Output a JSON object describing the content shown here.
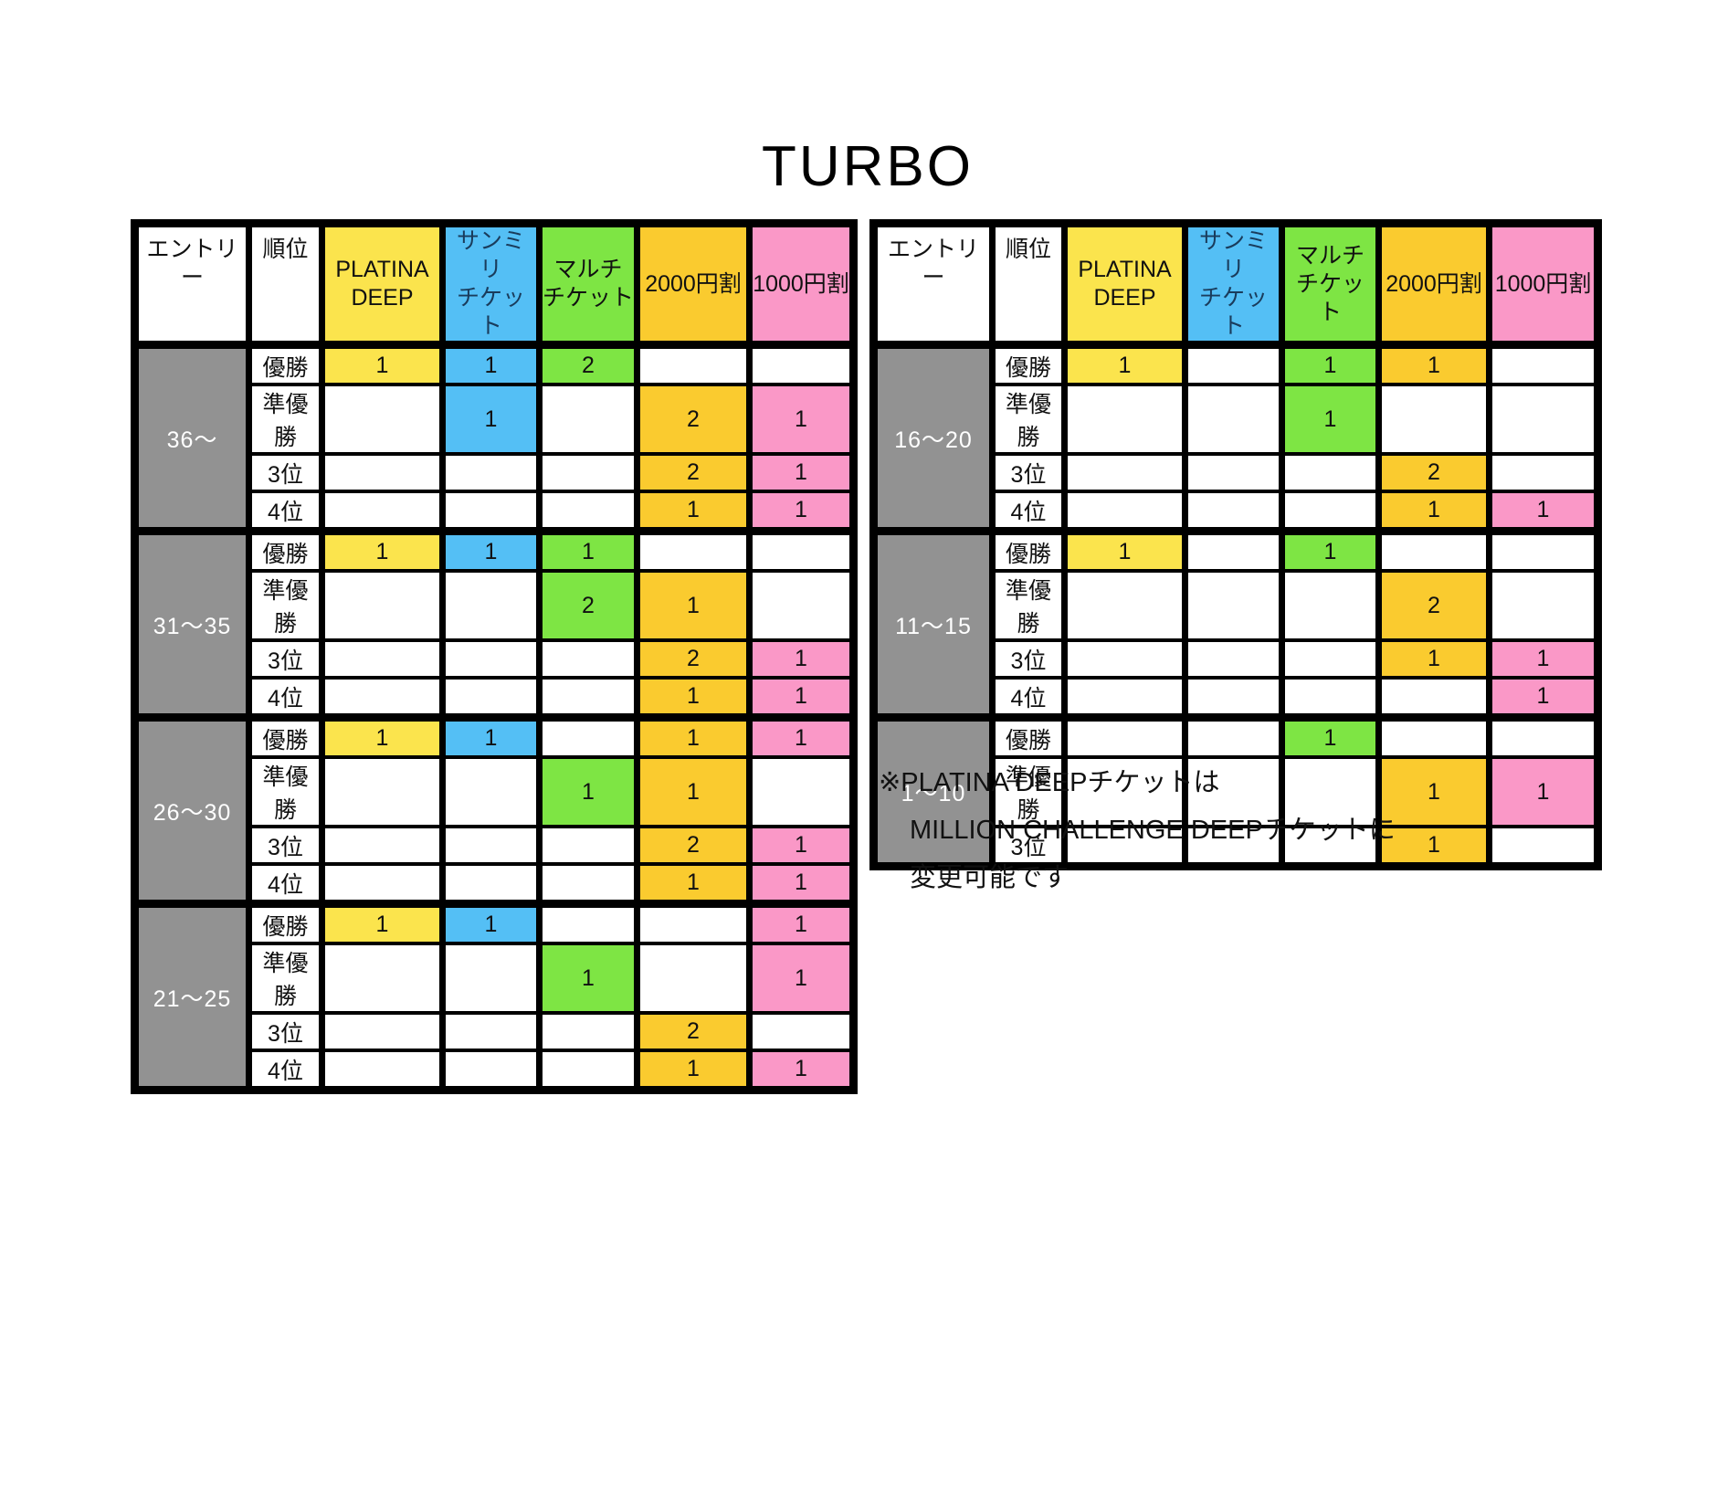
{
  "title": "TURBO",
  "column_headers": [
    "エントリー",
    "順位",
    "PLATINA\nDEEP",
    "サンミリ\nチケット",
    "マルチ\nチケット",
    "2000円割",
    "1000円割"
  ],
  "colors": {
    "platina_yellow": "#FBE44D",
    "sanmiri_blue": "#54BFF5",
    "multi_green": "#7EE544",
    "discount2000_gold": "#FACB2F",
    "discount1000_pink": "#FA98C7",
    "entry_gray": "#929292",
    "grid_black": "#000000"
  },
  "tables": [
    {
      "name": "left-prize-table",
      "groups": [
        {
          "entry": "36〜",
          "rows": [
            {
              "rank": "優勝",
              "values": [
                "1",
                "1",
                "2",
                "",
                ""
              ]
            },
            {
              "rank": "準優勝",
              "values": [
                "",
                "1",
                "",
                "2",
                "1"
              ]
            },
            {
              "rank": "3位",
              "values": [
                "",
                "",
                "",
                "2",
                "1"
              ]
            },
            {
              "rank": "4位",
              "values": [
                "",
                "",
                "",
                "1",
                "1"
              ]
            }
          ]
        },
        {
          "entry": "31〜35",
          "rows": [
            {
              "rank": "優勝",
              "values": [
                "1",
                "1",
                "1",
                "",
                ""
              ]
            },
            {
              "rank": "準優勝",
              "values": [
                "",
                "",
                "2",
                "1",
                ""
              ]
            },
            {
              "rank": "3位",
              "values": [
                "",
                "",
                "",
                "2",
                "1"
              ]
            },
            {
              "rank": "4位",
              "values": [
                "",
                "",
                "",
                "1",
                "1"
              ]
            }
          ]
        },
        {
          "entry": "26〜30",
          "rows": [
            {
              "rank": "優勝",
              "values": [
                "1",
                "1",
                "",
                "1",
                "1"
              ]
            },
            {
              "rank": "準優勝",
              "values": [
                "",
                "",
                "1",
                "1",
                ""
              ]
            },
            {
              "rank": "3位",
              "values": [
                "",
                "",
                "",
                "2",
                "1"
              ]
            },
            {
              "rank": "4位",
              "values": [
                "",
                "",
                "",
                "1",
                "1"
              ]
            }
          ]
        },
        {
          "entry": "21〜25",
          "rows": [
            {
              "rank": "優勝",
              "values": [
                "1",
                "1",
                "",
                "",
                "1"
              ]
            },
            {
              "rank": "準優勝",
              "values": [
                "",
                "",
                "1",
                "",
                "1"
              ]
            },
            {
              "rank": "3位",
              "values": [
                "",
                "",
                "",
                "2",
                ""
              ]
            },
            {
              "rank": "4位",
              "values": [
                "",
                "",
                "",
                "1",
                "1"
              ]
            }
          ]
        }
      ]
    },
    {
      "name": "right-prize-table",
      "groups": [
        {
          "entry": "16〜20",
          "rows": [
            {
              "rank": "優勝",
              "values": [
                "1",
                "",
                "1",
                "1",
                ""
              ]
            },
            {
              "rank": "準優勝",
              "values": [
                "",
                "",
                "1",
                "",
                ""
              ]
            },
            {
              "rank": "3位",
              "values": [
                "",
                "",
                "",
                "2",
                ""
              ]
            },
            {
              "rank": "4位",
              "values": [
                "",
                "",
                "",
                "1",
                "1"
              ]
            }
          ]
        },
        {
          "entry": "11〜15",
          "rows": [
            {
              "rank": "優勝",
              "values": [
                "1",
                "",
                "1",
                "",
                ""
              ]
            },
            {
              "rank": "準優勝",
              "values": [
                "",
                "",
                "",
                "2",
                ""
              ]
            },
            {
              "rank": "3位",
              "values": [
                "",
                "",
                "",
                "1",
                "1"
              ]
            },
            {
              "rank": "4位",
              "values": [
                "",
                "",
                "",
                "",
                "1"
              ]
            }
          ]
        },
        {
          "entry": "1〜10",
          "rows": [
            {
              "rank": "優勝",
              "values": [
                "",
                "",
                "1",
                "",
                ""
              ]
            },
            {
              "rank": "準優勝",
              "values": [
                "",
                "",
                "",
                "1",
                "1"
              ]
            },
            {
              "rank": "3位",
              "values": [
                "",
                "",
                "",
                "1",
                ""
              ]
            }
          ]
        }
      ]
    }
  ],
  "note": {
    "line1": "※PLATINA DEEPチケットは",
    "line2": "MILLION CHALLENGE DEEPチケットに",
    "line3": "変更可能です"
  }
}
